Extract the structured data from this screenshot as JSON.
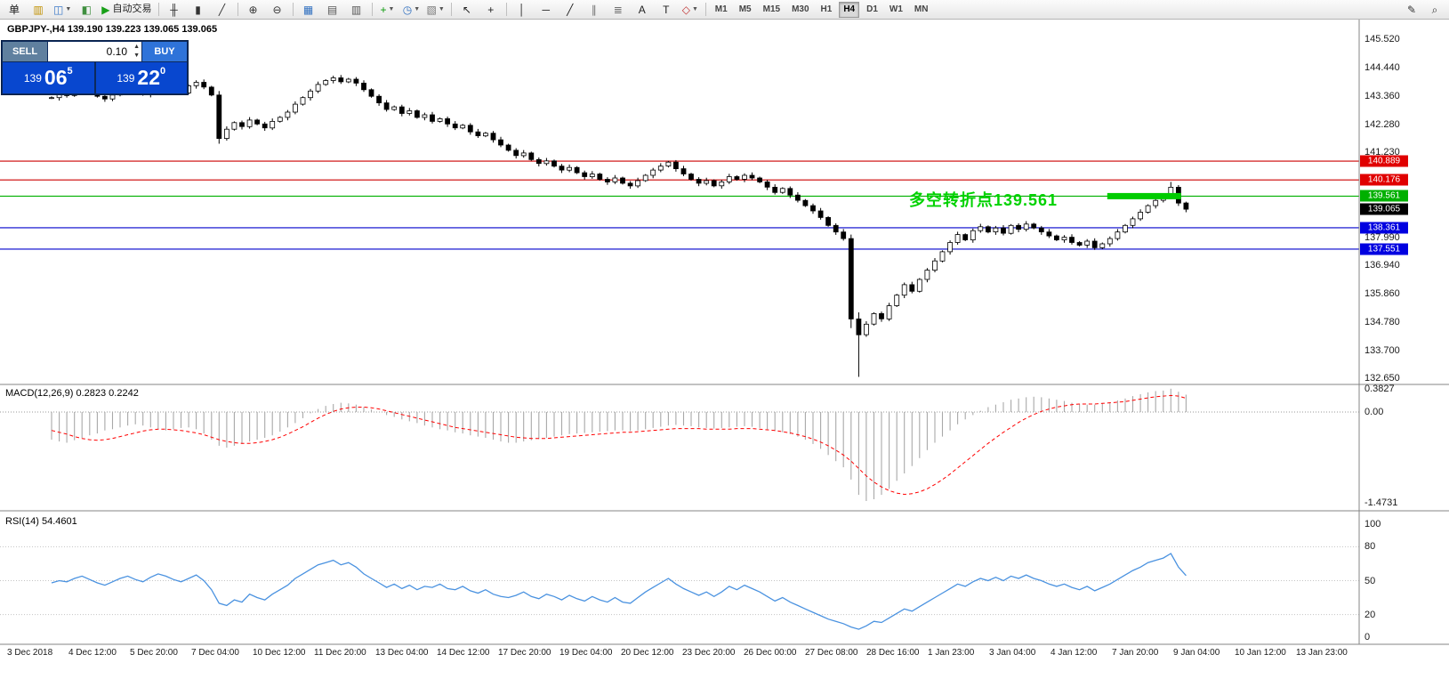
{
  "toolbar": {
    "buttons": [
      {
        "name": "new-order-button",
        "icon": "new-order-icon",
        "glyph": "单",
        "color": "#1a1a1a"
      },
      {
        "name": "new-chart-button",
        "icon": "new-chart-icon",
        "glyph": "▥",
        "color": "#c09000"
      },
      {
        "name": "profiles-button",
        "icon": "profiles-icon",
        "glyph": "◫",
        "color": "#3a78c8",
        "caret": true
      },
      {
        "name": "market-watch-button",
        "icon": "market-watch-icon",
        "glyph": "◧",
        "color": "#3f8f3f"
      },
      {
        "name": "autotrading-button",
        "icon": "autotrading-play-icon",
        "glyph": "▶",
        "color": "#18a018",
        "label": "自动交易"
      },
      {
        "name": "bars-chart-button",
        "icon": "ohlc-bars-icon",
        "glyph": "╫",
        "color": "#333333",
        "sep": true
      },
      {
        "name": "candles-chart-button",
        "icon": "candlestick-icon",
        "glyph": "▮",
        "color": "#333333"
      },
      {
        "name": "line-chart-button",
        "icon": "line-chart-icon",
        "glyph": "╱",
        "color": "#333333"
      },
      {
        "name": "zoom-in-button",
        "icon": "zoom-in-icon",
        "glyph": "⊕",
        "color": "#333333",
        "sep": true
      },
      {
        "name": "zoom-out-button",
        "icon": "zoom-out-icon",
        "glyph": "⊖",
        "color": "#333333"
      },
      {
        "name": "tile-windows-button",
        "icon": "tile-windows-icon",
        "glyph": "▦",
        "color": "#2f6fbf",
        "sep": true
      },
      {
        "name": "arrange-left-button",
        "icon": "arrange-left-icon",
        "glyph": "▤",
        "color": "#555555"
      },
      {
        "name": "arrange-right-button",
        "icon": "arrange-right-icon",
        "glyph": "▥",
        "color": "#555555"
      },
      {
        "name": "indicators-button",
        "icon": "add-indicator-icon",
        "glyph": "+",
        "color": "#0a9a0a",
        "caret": true,
        "sep": true
      },
      {
        "name": "periods-button",
        "icon": "clock-icon",
        "glyph": "◷",
        "color": "#2f6fbf",
        "caret": true
      },
      {
        "name": "templates-button",
        "icon": "template-icon",
        "glyph": "▧",
        "color": "#777777",
        "caret": true
      },
      {
        "name": "cursor-button",
        "icon": "cursor-icon",
        "glyph": "↖",
        "color": "#222222",
        "sep": true
      },
      {
        "name": "crosshair-button",
        "icon": "crosshair-icon",
        "glyph": "+",
        "color": "#222222"
      },
      {
        "name": "vertical-line-button",
        "icon": "vertical-line-icon",
        "glyph": "│",
        "color": "#222222",
        "sep": true
      },
      {
        "name": "horizontal-line-button",
        "icon": "horizontal-line-icon",
        "glyph": "─",
        "color": "#222222"
      },
      {
        "name": "trendline-button",
        "icon": "trendline-icon",
        "glyph": "╱",
        "color": "#222222"
      },
      {
        "name": "channel-button",
        "icon": "channel-icon",
        "glyph": "∥",
        "color": "#707070"
      },
      {
        "name": "fibonacci-button",
        "icon": "fibonacci-icon",
        "glyph": "≣",
        "color": "#707070"
      },
      {
        "name": "text-button",
        "icon": "text-icon",
        "glyph": "A",
        "color": "#222222"
      },
      {
        "name": "label-button",
        "icon": "label-icon",
        "glyph": "T",
        "color": "#222222"
      },
      {
        "name": "shapes-button",
        "icon": "shapes-icon",
        "glyph": "◇",
        "color": "#c03030",
        "caret": true
      }
    ],
    "timeframes": [
      "M1",
      "M5",
      "M15",
      "M30",
      "H1",
      "H4",
      "D1",
      "W1",
      "MN"
    ],
    "active_timeframe": "H4",
    "right_buttons": [
      {
        "name": "modify-button",
        "icon": "pencil-icon",
        "glyph": "✎",
        "color": "#333333"
      },
      {
        "name": "search-button",
        "icon": "magnifier-icon",
        "glyph": "⌕",
        "color": "#333333"
      }
    ]
  },
  "trade_panel": {
    "sell_label": "SELL",
    "buy_label": "BUY",
    "volume": "0.10",
    "sell_price_small": "139",
    "sell_price_big": "06",
    "sell_price_sup": "5",
    "buy_price_small": "139",
    "buy_price_big": "22",
    "buy_price_sup": "0"
  },
  "chart_data": [
    {
      "type": "candlestick",
      "symbol": "GBPJPY-",
      "timeframe": "H4",
      "title": "GBPJPY-,H4  139.190 139.223 139.065 139.065",
      "annotation": {
        "text": "多空转折点139.561",
        "color": "#00d200"
      },
      "current_price": {
        "label": "139.065",
        "price": 139.065,
        "tag_bg": "#000000"
      },
      "levels": [
        {
          "label": "140.889",
          "price": 140.889,
          "color": "#cc0000",
          "tag_bg": "#e00000"
        },
        {
          "label": "140.176",
          "price": 140.176,
          "color": "#cc0000",
          "tag_bg": "#e00000"
        },
        {
          "label": "139.561",
          "price": 139.561,
          "color": "#00b000",
          "tag_bg": "#00b000"
        },
        {
          "label": "138.361",
          "price": 138.361,
          "color": "#0000cc",
          "tag_bg": "#0000e0"
        },
        {
          "label": "137.551",
          "price": 137.551,
          "color": "#0000cc",
          "tag_bg": "#0000e0"
        }
      ],
      "segment": {
        "price": 139.561,
        "start_bar": 139,
        "end_bar": 148,
        "color": "#00cc00"
      },
      "y_ticks": [
        "145.520",
        "144.440",
        "143.360",
        "142.280",
        "141.230",
        "137.990",
        "136.940",
        "135.860",
        "134.780",
        "133.700",
        "132.650"
      ],
      "x_labels": [
        "3 Dec 2018",
        "4 Dec 12:00",
        "5 Dec 20:00",
        "7 Dec 04:00",
        "10 Dec 12:00",
        "11 Dec 20:00",
        "13 Dec 04:00",
        "14 Dec 12:00",
        "17 Dec 20:00",
        "19 Dec 04:00",
        "20 Dec 12:00",
        "23 Dec 20:00",
        "26 Dec 00:00",
        "27 Dec 08:00",
        "28 Dec 16:00",
        "1 Jan 23:00",
        "3 Jan 04:00",
        "4 Jan 12:00",
        "7 Jan 20:00",
        "9 Jan 04:00",
        "10 Jan 12:00",
        "13 Jan 23:00"
      ],
      "closes": [
        143.3,
        143.45,
        143.38,
        143.52,
        143.6,
        143.48,
        143.35,
        143.25,
        143.4,
        143.55,
        143.62,
        143.5,
        143.42,
        143.58,
        143.7,
        143.65,
        143.55,
        143.48,
        143.75,
        143.88,
        143.7,
        143.4,
        141.75,
        142.1,
        142.35,
        142.2,
        142.45,
        142.3,
        142.15,
        142.4,
        142.55,
        142.75,
        143.05,
        143.3,
        143.55,
        143.8,
        143.95,
        144.05,
        143.9,
        144.0,
        143.85,
        143.6,
        143.35,
        143.1,
        142.85,
        142.95,
        142.7,
        142.8,
        142.55,
        142.65,
        142.4,
        142.5,
        142.3,
        142.15,
        142.25,
        142.0,
        141.85,
        141.95,
        141.7,
        141.5,
        141.3,
        141.1,
        141.2,
        140.95,
        140.8,
        140.9,
        140.7,
        140.55,
        140.65,
        140.45,
        140.3,
        140.4,
        140.2,
        140.1,
        140.25,
        140.05,
        139.95,
        140.15,
        140.35,
        140.55,
        140.7,
        140.85,
        140.6,
        140.4,
        140.2,
        140.05,
        140.15,
        139.95,
        140.1,
        140.3,
        140.2,
        140.35,
        140.25,
        140.1,
        139.9,
        139.7,
        139.85,
        139.6,
        139.4,
        139.2,
        139.0,
        138.75,
        138.45,
        138.2,
        137.95,
        134.9,
        134.3,
        134.7,
        135.1,
        134.9,
        135.4,
        135.8,
        136.2,
        135.95,
        136.4,
        136.75,
        137.1,
        137.45,
        137.8,
        138.1,
        137.9,
        138.25,
        138.4,
        138.2,
        138.35,
        138.15,
        138.45,
        138.3,
        138.5,
        138.35,
        138.2,
        138.05,
        137.9,
        138.0,
        137.8,
        137.7,
        137.85,
        137.6,
        137.75,
        137.95,
        138.2,
        138.45,
        138.7,
        138.95,
        139.2,
        139.4,
        139.55,
        139.9,
        139.3,
        139.065
      ],
      "special_bars": {
        "22": [
          143.4,
          143.55,
          141.55,
          141.75
        ],
        "105": [
          137.95,
          138.1,
          134.55,
          134.9
        ],
        "106": [
          134.9,
          135.15,
          132.7,
          134.3
        ],
        "147": [
          139.55,
          140.1,
          139.45,
          139.9
        ],
        "149": [
          139.3,
          139.35,
          138.95,
          139.065
        ]
      }
    },
    {
      "type": "bar",
      "name": "MACD",
      "label": "MACD(12,26,9) 0.2823 0.2242",
      "y_ticks": [
        "0.3827",
        "0.00",
        "-1.4731"
      ],
      "zero_levels": [
        0
      ],
      "values": [
        -0.45,
        -0.48,
        -0.5,
        -0.46,
        -0.42,
        -0.38,
        -0.35,
        -0.3,
        -0.28,
        -0.25,
        -0.22,
        -0.2,
        -0.22,
        -0.25,
        -0.28,
        -0.3,
        -0.28,
        -0.26,
        -0.25,
        -0.28,
        -0.35,
        -0.45,
        -0.55,
        -0.58,
        -0.55,
        -0.52,
        -0.48,
        -0.45,
        -0.42,
        -0.38,
        -0.32,
        -0.25,
        -0.18,
        -0.1,
        -0.02,
        0.05,
        0.1,
        0.13,
        0.15,
        0.14,
        0.12,
        0.08,
        0.04,
        0.0,
        -0.05,
        -0.08,
        -0.12,
        -0.15,
        -0.18,
        -0.22,
        -0.25,
        -0.28,
        -0.3,
        -0.33,
        -0.35,
        -0.38,
        -0.4,
        -0.42,
        -0.45,
        -0.48,
        -0.5,
        -0.5,
        -0.48,
        -0.46,
        -0.44,
        -0.42,
        -0.4,
        -0.38,
        -0.36,
        -0.35,
        -0.34,
        -0.33,
        -0.32,
        -0.31,
        -0.3,
        -0.3,
        -0.31,
        -0.3,
        -0.28,
        -0.26,
        -0.24,
        -0.22,
        -0.21,
        -0.22,
        -0.23,
        -0.25,
        -0.26,
        -0.27,
        -0.26,
        -0.25,
        -0.24,
        -0.23,
        -0.24,
        -0.26,
        -0.28,
        -0.31,
        -0.33,
        -0.36,
        -0.4,
        -0.45,
        -0.52,
        -0.6,
        -0.7,
        -0.8,
        -0.9,
        -1.1,
        -1.35,
        -1.45,
        -1.42,
        -1.35,
        -1.25,
        -1.12,
        -1.0,
        -0.88,
        -0.75,
        -0.62,
        -0.5,
        -0.4,
        -0.3,
        -0.2,
        -0.12,
        -0.05,
        0.02,
        0.08,
        0.12,
        0.16,
        0.2,
        0.22,
        0.24,
        0.25,
        0.24,
        0.22,
        0.2,
        0.18,
        0.15,
        0.13,
        0.12,
        0.12,
        0.14,
        0.16,
        0.19,
        0.22,
        0.26,
        0.29,
        0.32,
        0.34,
        0.35,
        0.38,
        0.33,
        0.2823
      ],
      "signal": [
        -0.3,
        -0.33,
        -0.36,
        -0.4,
        -0.43,
        -0.45,
        -0.46,
        -0.45,
        -0.43,
        -0.4,
        -0.37,
        -0.34,
        -0.31,
        -0.29,
        -0.28,
        -0.28,
        -0.29,
        -0.3,
        -0.32,
        -0.34,
        -0.37,
        -0.41,
        -0.45,
        -0.48,
        -0.5,
        -0.51,
        -0.51,
        -0.5,
        -0.48,
        -0.45,
        -0.41,
        -0.36,
        -0.3,
        -0.24,
        -0.17,
        -0.1,
        -0.04,
        0.01,
        0.05,
        0.07,
        0.08,
        0.08,
        0.07,
        0.05,
        0.02,
        -0.01,
        -0.04,
        -0.07,
        -0.1,
        -0.13,
        -0.16,
        -0.19,
        -0.22,
        -0.25,
        -0.27,
        -0.29,
        -0.31,
        -0.33,
        -0.35,
        -0.37,
        -0.39,
        -0.41,
        -0.42,
        -0.43,
        -0.43,
        -0.43,
        -0.42,
        -0.41,
        -0.4,
        -0.39,
        -0.38,
        -0.37,
        -0.36,
        -0.35,
        -0.34,
        -0.33,
        -0.33,
        -0.32,
        -0.31,
        -0.3,
        -0.29,
        -0.28,
        -0.27,
        -0.27,
        -0.27,
        -0.27,
        -0.28,
        -0.28,
        -0.28,
        -0.28,
        -0.27,
        -0.27,
        -0.27,
        -0.28,
        -0.29,
        -0.3,
        -0.32,
        -0.34,
        -0.37,
        -0.4,
        -0.44,
        -0.49,
        -0.55,
        -0.62,
        -0.7,
        -0.8,
        -0.92,
        -1.04,
        -1.14,
        -1.22,
        -1.28,
        -1.32,
        -1.34,
        -1.33,
        -1.3,
        -1.25,
        -1.18,
        -1.1,
        -1.01,
        -0.91,
        -0.81,
        -0.71,
        -0.61,
        -0.51,
        -0.42,
        -0.33,
        -0.25,
        -0.17,
        -0.1,
        -0.04,
        0.01,
        0.05,
        0.08,
        0.1,
        0.12,
        0.13,
        0.13,
        0.13,
        0.14,
        0.15,
        0.16,
        0.17,
        0.19,
        0.21,
        0.23,
        0.25,
        0.26,
        0.27,
        0.26,
        0.2242
      ]
    },
    {
      "type": "line",
      "name": "RSI",
      "label": "RSI(14) 54.4601",
      "y_ticks": [
        "100",
        "80",
        "50",
        "20",
        "0"
      ],
      "levels": [
        80,
        50,
        20
      ],
      "values": [
        48,
        50,
        49,
        52,
        54,
        51,
        48,
        46,
        49,
        52,
        54,
        51,
        49,
        53,
        56,
        54,
        51,
        49,
        52,
        55,
        50,
        42,
        30,
        28,
        33,
        31,
        38,
        35,
        33,
        38,
        42,
        46,
        52,
        56,
        60,
        64,
        66,
        68,
        64,
        66,
        62,
        56,
        52,
        48,
        44,
        47,
        43,
        46,
        42,
        45,
        44,
        47,
        43,
        42,
        45,
        41,
        39,
        42,
        38,
        36,
        35,
        37,
        40,
        36,
        34,
        38,
        36,
        33,
        37,
        34,
        32,
        36,
        33,
        31,
        35,
        31,
        30,
        35,
        40,
        44,
        48,
        52,
        47,
        43,
        40,
        37,
        40,
        36,
        40,
        45,
        42,
        46,
        43,
        40,
        36,
        32,
        35,
        31,
        28,
        25,
        22,
        19,
        16,
        14,
        12,
        9,
        7,
        10,
        14,
        13,
        17,
        21,
        25,
        23,
        27,
        31,
        35,
        39,
        43,
        47,
        45,
        49,
        52,
        50,
        53,
        50,
        54,
        52,
        55,
        52,
        50,
        47,
        45,
        47,
        44,
        42,
        45,
        41,
        44,
        47,
        51,
        55,
        59,
        62,
        66,
        68,
        70,
        74,
        62,
        54.4601
      ]
    }
  ]
}
